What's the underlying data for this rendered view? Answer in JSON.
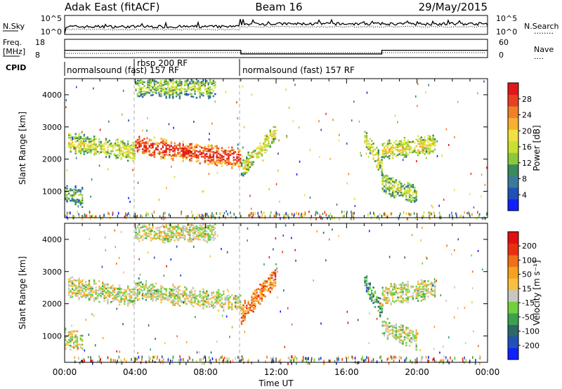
{
  "header": {
    "left": "Adak East (fitACF)",
    "center": "Beam 16",
    "right": "29/May/2015"
  },
  "nsky_panel": {
    "left_label": "N.Sky",
    "right_label": "N.Search",
    "legend_dots": "........",
    "y_ticks": [
      "10^5",
      "10^0"
    ]
  },
  "freq_panel": {
    "left_label_top": "Freq.",
    "left_label_bottom": "[MHz]",
    "right_label": "Nave",
    "legend_dots": "....",
    "left_ticks": [
      "18",
      "8"
    ],
    "right_ticks": [
      "60",
      "0"
    ],
    "freq_values_mhz": [
      {
        "start_h": 0.0,
        "end_h": 10.0,
        "value": 12
      },
      {
        "start_h": 10.0,
        "end_h": 18.0,
        "value": 10
      },
      {
        "start_h": 18.0,
        "end_h": 24.0,
        "value": 12
      }
    ]
  },
  "cpid_panel": {
    "label": "CPID",
    "segments": [
      {
        "start_h": 0.0,
        "label": "normalsound (fast) 157 RF"
      },
      {
        "start_h": 4.0,
        "label": "rbsp 200 RF"
      },
      {
        "start_h": 10.0,
        "label": "normalsound (fast) 157 RF"
      }
    ]
  },
  "chart_data": [
    {
      "type": "heatmap",
      "name": "power-panel",
      "ylabel": "Slant Range [km]",
      "xlim": [
        0,
        24
      ],
      "ylim": [
        180,
        4500
      ],
      "y_ticks": [
        1000,
        2000,
        3000,
        4000
      ],
      "colorbar": {
        "label": "Power [dB]",
        "ticks": [
          "4",
          "8",
          "12",
          "16",
          "20",
          "24",
          "28"
        ],
        "colors": [
          "#1020ff",
          "#2050b8",
          "#3c7a9a",
          "#3a8a5a",
          "#8cc83c",
          "#c8e030",
          "#f0e040",
          "#f8b030",
          "#f08028",
          "#e84020",
          "#e01818"
        ]
      },
      "backscatter_bands": [
        {
          "t_start": 0.2,
          "t_end": 4.0,
          "r_start": 2550,
          "r_end": 2250,
          "level": 0.35
        },
        {
          "t_start": 4.0,
          "t_end": 10.0,
          "r_start": 2450,
          "r_end": 2050,
          "level": 0.75
        },
        {
          "t_start": 10.0,
          "t_end": 12.0,
          "r_start": 1700,
          "r_end": 2900,
          "level": 0.35
        },
        {
          "t_start": 17.0,
          "t_end": 18.0,
          "r_start": 2700,
          "r_end": 1800,
          "level": 0.35
        },
        {
          "t_start": 18.0,
          "t_end": 21.0,
          "r_start": 2300,
          "r_end": 2500,
          "level": 0.4
        },
        {
          "t_start": 18.0,
          "t_end": 20.0,
          "r_start": 1300,
          "r_end": 900,
          "level": 0.3
        },
        {
          "t_start": 4.0,
          "t_end": 8.5,
          "r_start": 4250,
          "r_end": 4250,
          "level": 0.25
        },
        {
          "t_start": 0.0,
          "t_end": 1.0,
          "r_start": 950,
          "r_end": 850,
          "level": 0.2
        }
      ]
    },
    {
      "type": "heatmap",
      "name": "velocity-panel",
      "ylabel": "Slant Range [km]",
      "xlabel": "Time UT",
      "xlim": [
        0,
        24
      ],
      "ylim": [
        180,
        4500
      ],
      "y_ticks": [
        1000,
        2000,
        3000,
        4000
      ],
      "x_tick_labels": [
        "00:00",
        "04:00",
        "08:00",
        "12:00",
        "16:00",
        "20:00",
        "00:00"
      ],
      "colorbar": {
        "label": "Velocity [m s⁻¹]",
        "ticks": [
          "200",
          "100",
          "50",
          "15",
          "-15",
          "-50",
          "-100",
          "-200"
        ],
        "colors": [
          "#1020ff",
          "#2050b8",
          "#2c6868",
          "#3ca050",
          "#70d040",
          "#c8c8c0",
          "#f8c040",
          "#f8a020",
          "#f07018",
          "#e83010",
          "#e01010"
        ]
      },
      "backscatter_bands": [
        {
          "t_start": 0.2,
          "t_end": 4.0,
          "r_start": 2550,
          "r_end": 2250,
          "level": 0.5
        },
        {
          "t_start": 4.0,
          "t_end": 10.0,
          "r_start": 2450,
          "r_end": 2050,
          "level": 0.5
        },
        {
          "t_start": 10.0,
          "t_end": 12.0,
          "r_start": 1700,
          "r_end": 2900,
          "level": 0.75
        },
        {
          "t_start": 17.0,
          "t_end": 18.0,
          "r_start": 2700,
          "r_end": 1800,
          "level": 0.3
        },
        {
          "t_start": 18.0,
          "t_end": 21.0,
          "r_start": 2300,
          "r_end": 2500,
          "level": 0.5
        },
        {
          "t_start": 18.0,
          "t_end": 20.0,
          "r_start": 1300,
          "r_end": 900,
          "level": 0.5
        },
        {
          "t_start": 4.0,
          "t_end": 8.5,
          "r_start": 4250,
          "r_end": 4250,
          "level": 0.5
        },
        {
          "t_start": 0.0,
          "t_end": 1.0,
          "r_start": 950,
          "r_end": 850,
          "level": 0.5
        }
      ]
    }
  ]
}
